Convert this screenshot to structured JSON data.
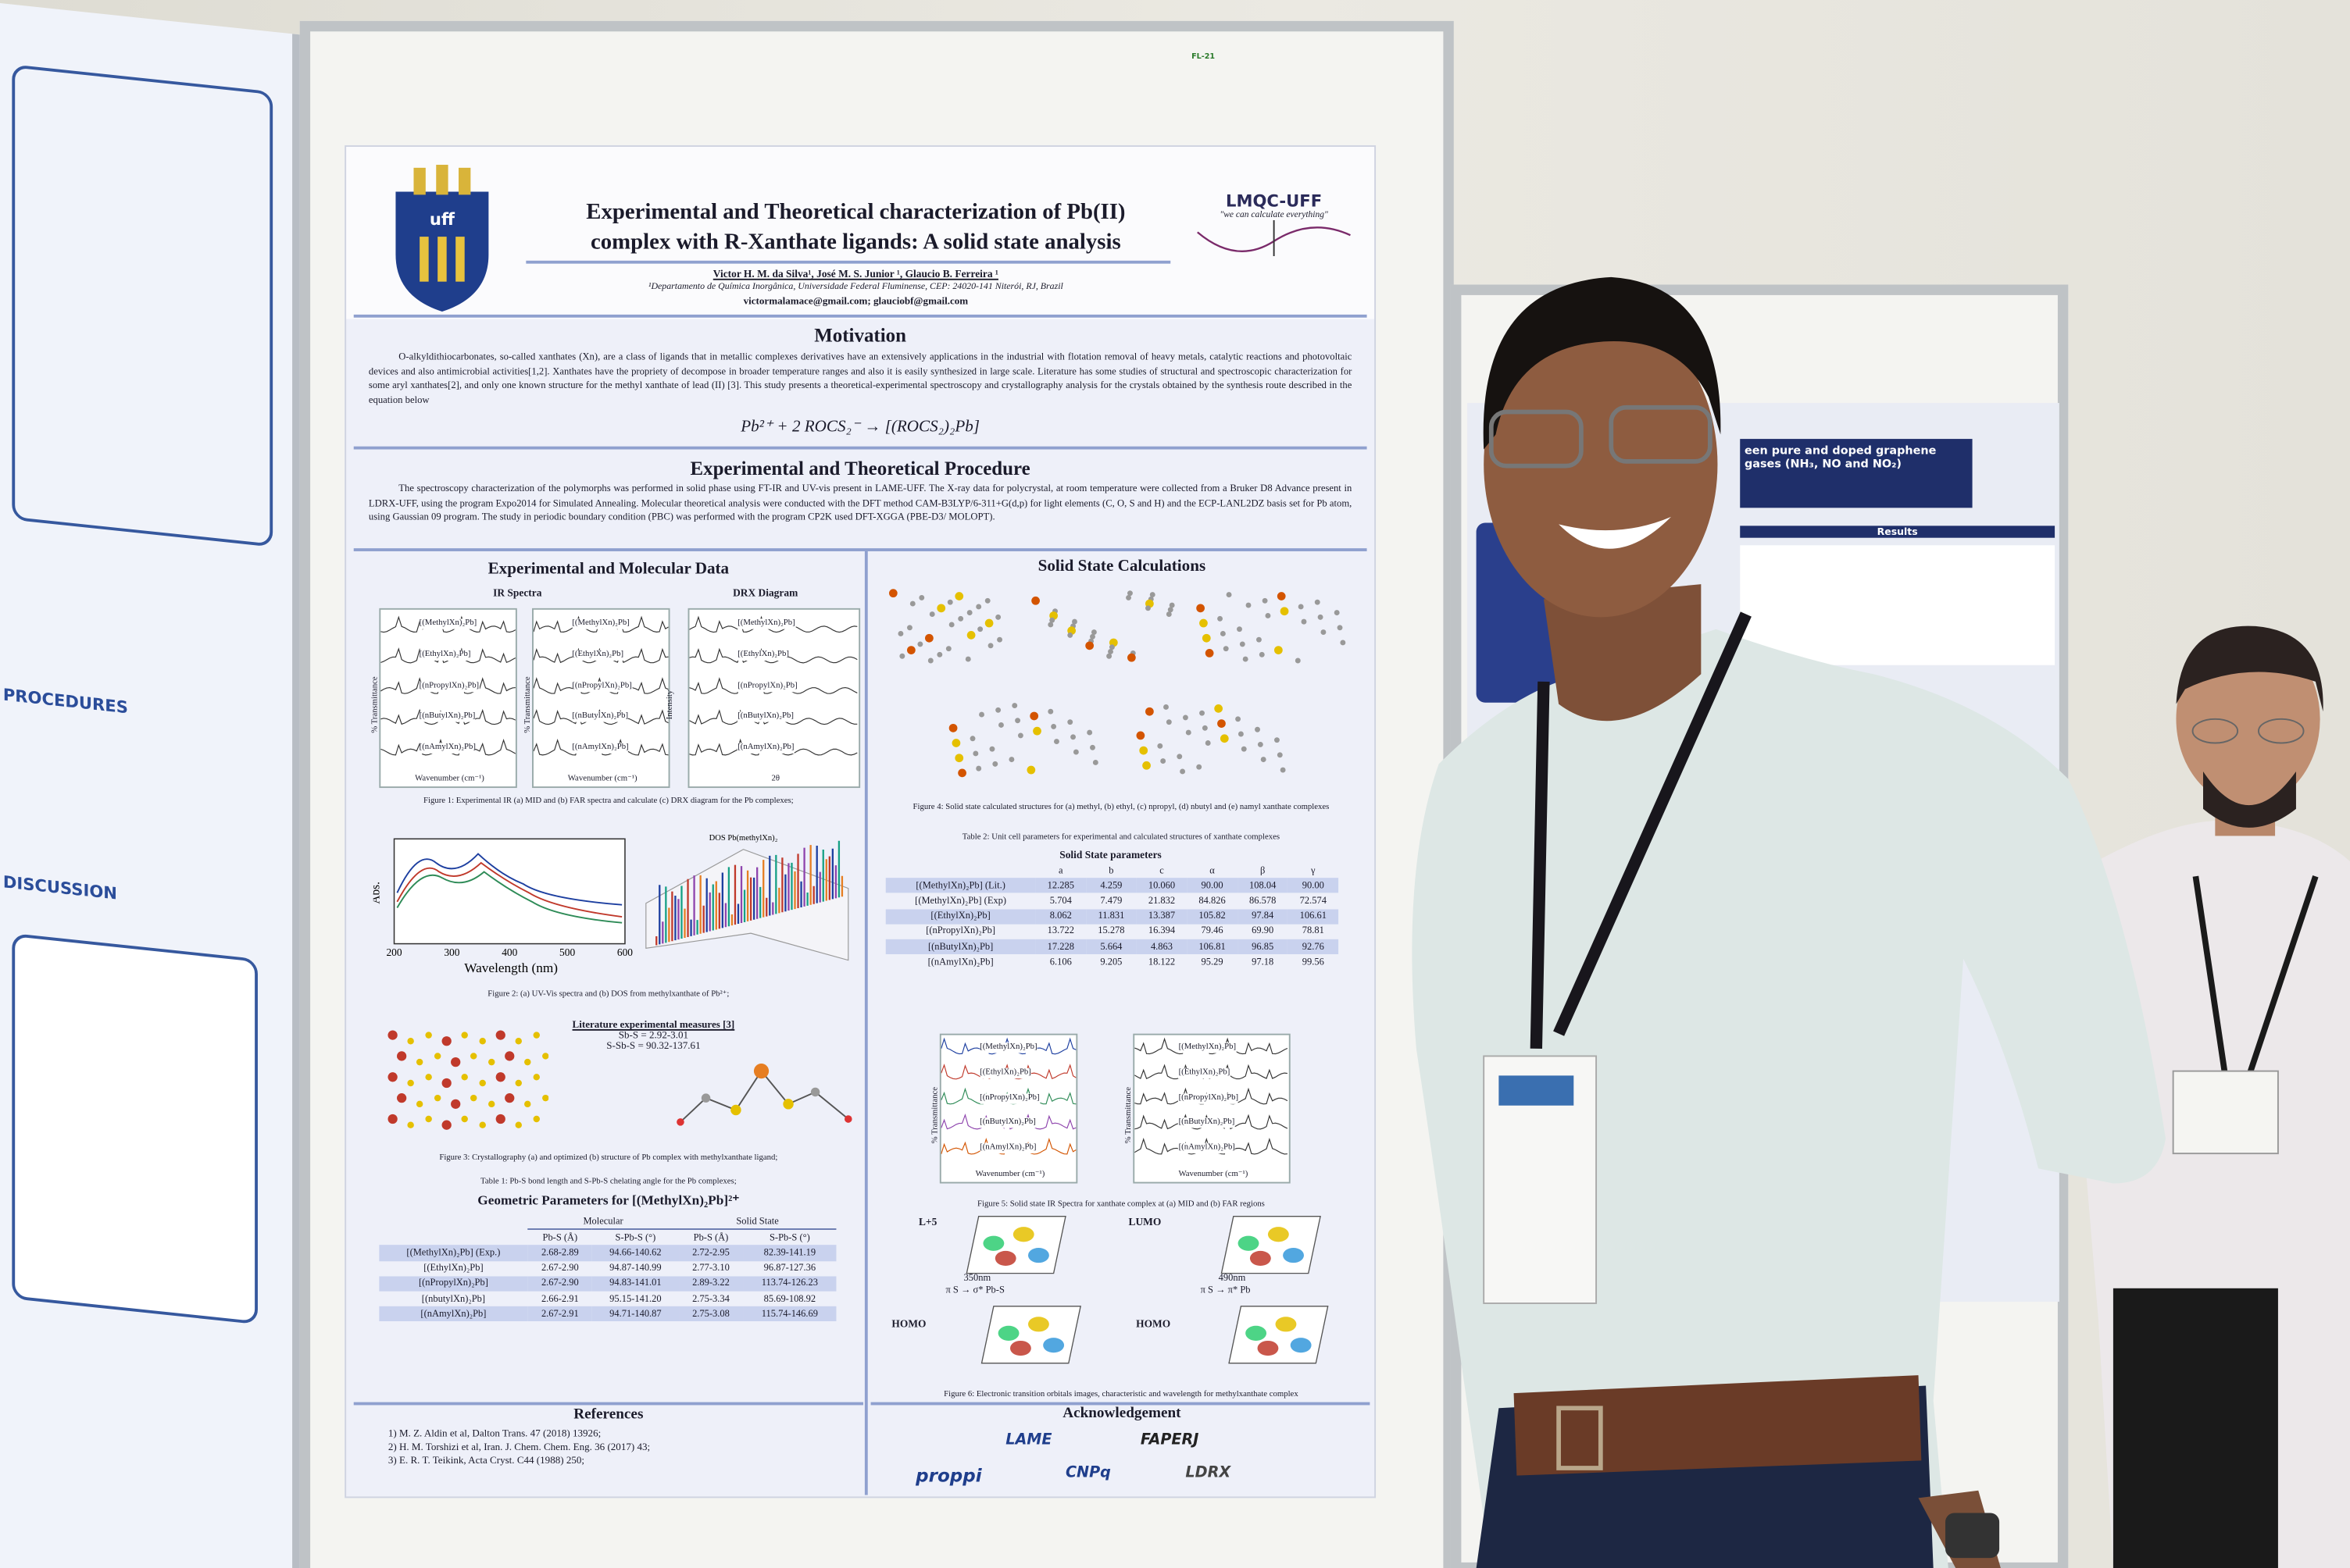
{
  "poster": {
    "title_line1": "Experimental and Theoretical characterization of Pb(II)",
    "title_line2": "complex with R-Xanthate ligands: A solid state analysis",
    "authors": "Victor H. M. da Silva¹, José M. S. Junior ¹, Glaucio B. Ferreira ¹",
    "affiliation": "¹Departamento de Química Inorgânica, Universidade Federal Fluminense, CEP: 24020-141 Niterói, RJ, Brazil",
    "email": "victormalamace@gmail.com; glauciobf@gmail.com",
    "logo_left": "uff",
    "logo_right": "LMQC-UFF",
    "logo_right_tagline": "\"we can calculate everything\"",
    "motivation": {
      "heading": "Motivation",
      "text": "O-alkyldithiocarbonates, so-called xanthates (Xn), are a class of ligands that in metallic complexes derivatives have an extensively applications in the industrial with flotation removal of heavy metals, catalytic reactions and photovoltaic devices and also antimicrobial activities[1,2]. Xanthates have the propriety of decompose in broader temperature ranges and also it is easily synthesized in large scale. Literature has some studies of structural and spectroscopic characterization for some aryl xanthates[2], and only one known structure for the methyl xanthate of lead (II) [3]. This study presents a theoretical-experimental spectroscopy and crystallography analysis for the crystals obtained by the synthesis route described in the equation below",
      "equation": "Pb²⁺ + 2 ROCS₂⁻ → [(ROCS₂)₂Pb]"
    },
    "procedure": {
      "heading": "Experimental and Theoretical Procedure",
      "text": "The spectroscopy characterization of the polymorphs was performed in solid phase using FT-IR and UV-vis present in LAME-UFF. The X-ray data for polycrystal, at room temperature were collected from a Bruker D8 Advance present in LDRX-UFF, using the program Expo2014 for Simulated Annealing. Molecular theoretical analysis were conducted with the DFT method CAM-B3LYP/6-311+G(d,p) for light elements (C, O, S and H) and the ECP-LANL2DZ basis set for Pb atom, using Gaussian 09 program. The study in periodic boundary condition (PBC) was performed with the program CP2K used DFT-XGGA (PBE-D3/ MOLOPT)."
    },
    "experimental": {
      "heading": "Experimental and Molecular Data",
      "ir_label": "IR Spectra",
      "drx_label": "DRX Diagram",
      "panel_labels": [
        "[(MethylXn)₂Pb]",
        "[(EthylXn)₂Pb]",
        "[(nPropylXn)₂Pb]",
        "[(nButylXn)₂Pb]",
        "[(nAmylXn)₂Pb]"
      ],
      "ir_xlabel": "Wavenumber (cm⁻¹)",
      "ir_ylabel": "% Transmittance",
      "drx_ylabel": "Intensity",
      "drx_xlabel": "2θ",
      "fig1": "Figure 1: Experimental IR (a) MID and (b) FAR spectra and calculate (c) DRX diagram for the Pb complexes;",
      "uv_ylabel": "Abs.",
      "uv_xlabel": "Wavelength (nm)",
      "uv_xticks": [
        "200",
        "300",
        "400",
        "500",
        "600"
      ],
      "dos_title": "DOS Pb(methylXn)₂",
      "fig2": "Figure 2: (a) UV-Vis spectra and (b) DOS from methylxanthate of Pb²⁺;",
      "literature": {
        "heading": "Literature experimental measures [3]",
        "line1": "Sb-S = 2.92-3.01",
        "line2": "S-Sb-S = 90.32-137.61"
      },
      "fig3": "Figure 3: Crystallography (a) and optimized (b) structure of Pb complex with methylxanthate ligand;",
      "table1_caption": "Table 1: Pb-S bond length and S-Pb-S chelating angle for the Pb complexes;",
      "table1": {
        "title": "Geometric Parameters for [(MethylXn)₂Pb]²⁺",
        "groups": [
          "Molecular",
          "Solid State"
        ],
        "columns": [
          "Pb-S (Å)",
          "S-Pb-S (°)",
          "Pb-S (Å)",
          "S-Pb-S (°)"
        ],
        "rows": [
          [
            "[(MethylXn)₂Pb] (Exp.)",
            "2.68-2.89",
            "94.66-140.62",
            "2.72-2.95",
            "82.39-141.19"
          ],
          [
            "[(EthylXn)₂Pb]",
            "2.67-2.90",
            "94.87-140.99",
            "2.77-3.10",
            "96.87-127.36"
          ],
          [
            "[(nPropylXn)₂Pb]",
            "2.67-2.90",
            "94.83-141.01",
            "2.89-3.22",
            "113.74-126.23"
          ],
          [
            "[(nbutylXn)₂Pb]",
            "2.66-2.91",
            "95.15-141.20",
            "2.75-3.34",
            "85.69-108.92"
          ],
          [
            "[(nAmylXn)₂Pb]",
            "2.67-2.91",
            "94.71-140.87",
            "2.75-3.08",
            "115.74-146.69"
          ]
        ]
      }
    },
    "solid_state": {
      "heading": "Solid State Calculations",
      "fig4": "Figure 4: Solid state calculated structures for (a) methyl, (b) ethyl, (c) npropyl, (d) nbutyl and (e) namyl xanthate complexes",
      "table2_caption": "Table 2: Unit cell parameters for experimental and calculated structures of xanthate complexes",
      "table2": {
        "title": "Solid State parameters",
        "columns": [
          "a",
          "b",
          "c",
          "α",
          "β",
          "γ"
        ],
        "rows": [
          [
            "[(MethylXn)₂Pb] (Lit.)",
            "12.285",
            "4.259",
            "10.060",
            "90.00",
            "108.04",
            "90.00"
          ],
          [
            "[(MethylXn)₂Pb] (Exp)",
            "5.704",
            "7.479",
            "21.832",
            "84.826",
            "86.578",
            "72.574"
          ],
          [
            "[(EthylXn)₂Pb]",
            "8.062",
            "11.831",
            "13.387",
            "105.82",
            "97.84",
            "106.61"
          ],
          [
            "[(nPropylXn)₂Pb]",
            "13.722",
            "15.278",
            "16.394",
            "79.46",
            "69.90",
            "78.81"
          ],
          [
            "[(nButylXn)₂Pb]",
            "17.228",
            "5.664",
            "4.863",
            "106.81",
            "96.85",
            "92.76"
          ],
          [
            "[(nAmylXn)₂Pb]",
            "6.106",
            "9.205",
            "18.122",
            "95.29",
            "97.18",
            "99.56"
          ]
        ]
      },
      "fig5": "Figure 5: Solid state IR Spectra for xanthate complex at (a) MID and (b) FAR regions",
      "orbitals": {
        "left_top": "L+5",
        "right_top": "LUMO",
        "left_bottom": "HOMO",
        "right_bottom": "HOMO",
        "left_nm": "350nm",
        "left_transition": "π S → σ* Pb-S",
        "right_nm": "490nm",
        "right_transition": "π S → π* Pb"
      },
      "fig6": "Figure 6: Electronic transition orbitals images, characteristic and wavelength for methylxanthate complex"
    },
    "references": {
      "heading": "References",
      "items": [
        "1) M. Z. Aldin et al, Dalton Trans. 47 (2018) 13926;",
        "2) H. M. Torshizi et al, Iran. J. Chem. Chem. Eng. 36 (2017) 43;",
        "3) E. R. T. Teikink, Acta Cryst. C44 (1988) 250;"
      ]
    },
    "acknowledgement": {
      "heading": "Acknowledgement",
      "logos": [
        "LAME",
        "FAPERJ",
        "proppi",
        "CNPq",
        "LDRX"
      ]
    }
  },
  "neighbor_posters": {
    "left": [
      "PROCEDURES",
      "DISCUSSION"
    ],
    "right_title1": "een pure and doped graphene",
    "right_title2": "gases (NH₃, NO and NO₂)",
    "right_results": "Results"
  },
  "board_tag": "FL-21"
}
